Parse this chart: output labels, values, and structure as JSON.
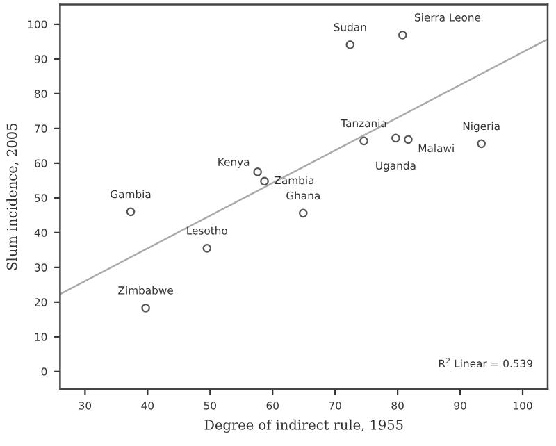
{
  "chart_data": {
    "type": "scatter",
    "xlabel": "Degree of indirect rule, 1955",
    "ylabel": "Slum incidence, 2005",
    "xlim": [
      26,
      104
    ],
    "ylim": [
      -5,
      105.7
    ],
    "xticks": [
      30,
      40,
      50,
      60,
      70,
      80,
      90,
      100
    ],
    "yticks": [
      0,
      10,
      20,
      30,
      40,
      50,
      60,
      70,
      80,
      90,
      100
    ],
    "grid": false,
    "marker": "circle",
    "series": [
      {
        "color": "#555555",
        "x": [
          37.3,
          57.6,
          58.7,
          64.9,
          74.6,
          79.7,
          81.7,
          93.4,
          72.4,
          80.8,
          49.5,
          39.7
        ],
        "values": [
          46.0,
          57.5,
          54.8,
          45.6,
          66.4,
          67.2,
          66.8,
          65.6,
          94.1,
          96.9,
          35.5,
          18.3
        ]
      },
      {
        "type": "line",
        "marker": "none",
        "color": "#aaaaaa",
        "x": [
          26,
          104
        ],
        "values": [
          22.3,
          95.7
        ]
      }
    ],
    "annotations": [
      {
        "text": "Gambia",
        "x": 37.3,
        "y": 46.0
      },
      {
        "text": "Kenya",
        "x": 57.6,
        "y": 57.5
      },
      {
        "text": "Zambia",
        "x": 58.7,
        "y": 54.8
      },
      {
        "text": "Ghana",
        "x": 64.9,
        "y": 45.6
      },
      {
        "text": "Tanzania",
        "x": 74.6,
        "y": 66.4
      },
      {
        "text": "Uganda",
        "x": 79.7,
        "y": 67.2
      },
      {
        "text": "Malawi",
        "x": 81.7,
        "y": 66.8
      },
      {
        "text": "Nigeria",
        "x": 93.4,
        "y": 65.6
      },
      {
        "text": "Sudan",
        "x": 72.4,
        "y": 94.1
      },
      {
        "text": "Sierra Leone",
        "x": 80.8,
        "y": 96.9
      },
      {
        "text": "Lesotho",
        "x": 49.5,
        "y": 35.5
      },
      {
        "text": "Zimbabwe",
        "x": 39.7,
        "y": 18.3
      },
      "R$^{2}$ Linear = 0.539"
    ]
  }
}
